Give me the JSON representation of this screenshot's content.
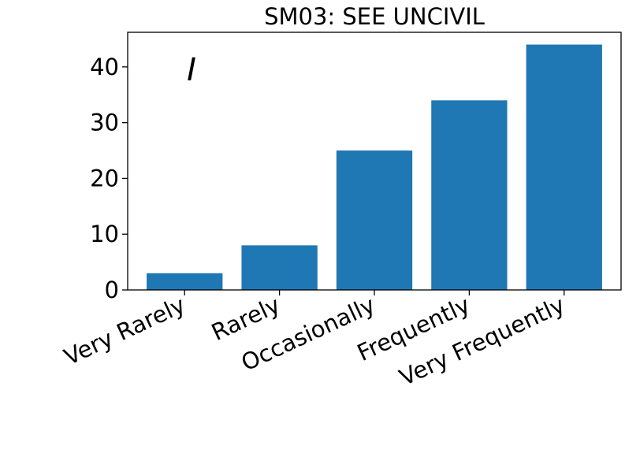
{
  "chart_data": {
    "type": "bar",
    "title": "SM03: SEE UNCIVIL",
    "annotation": "I",
    "categories": [
      "Very Rarely",
      "Rarely",
      "Occasionally",
      "Frequently",
      "Very Frequently"
    ],
    "values": [
      3,
      8,
      25,
      34,
      44
    ],
    "yticks": [
      0,
      10,
      20,
      30,
      40
    ],
    "ylim": [
      0,
      46.2
    ],
    "xlabel": "",
    "ylabel": "",
    "bar_color": "#1f77b4",
    "grid": false
  }
}
